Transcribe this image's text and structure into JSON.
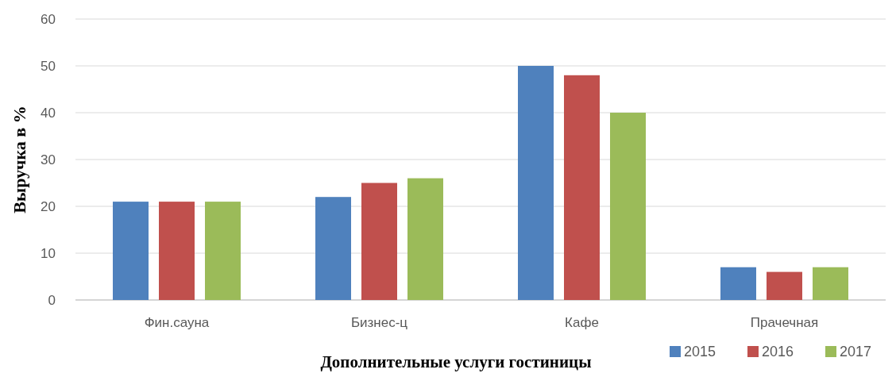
{
  "chart_data": {
    "type": "bar",
    "xlabel": "Дополнительные услуги гостиницы",
    "ylabel": "Выручка в %",
    "categories": [
      "Фин.сауна",
      "Бизнес-ц",
      "Кафе",
      "Прачечная"
    ],
    "series": [
      {
        "name": "2015",
        "color": "#4f81bd",
        "values": [
          21,
          22,
          50,
          7
        ]
      },
      {
        "name": "2016",
        "color": "#c0504d",
        "values": [
          21,
          25,
          48,
          6
        ]
      },
      {
        "name": "2017",
        "color": "#9bbb59",
        "values": [
          21,
          26,
          40,
          7
        ]
      }
    ],
    "ylim": [
      0,
      60
    ],
    "yticks": [
      0,
      10,
      20,
      30,
      40,
      50,
      60
    ],
    "grid": "y",
    "legend": "bottom right"
  }
}
